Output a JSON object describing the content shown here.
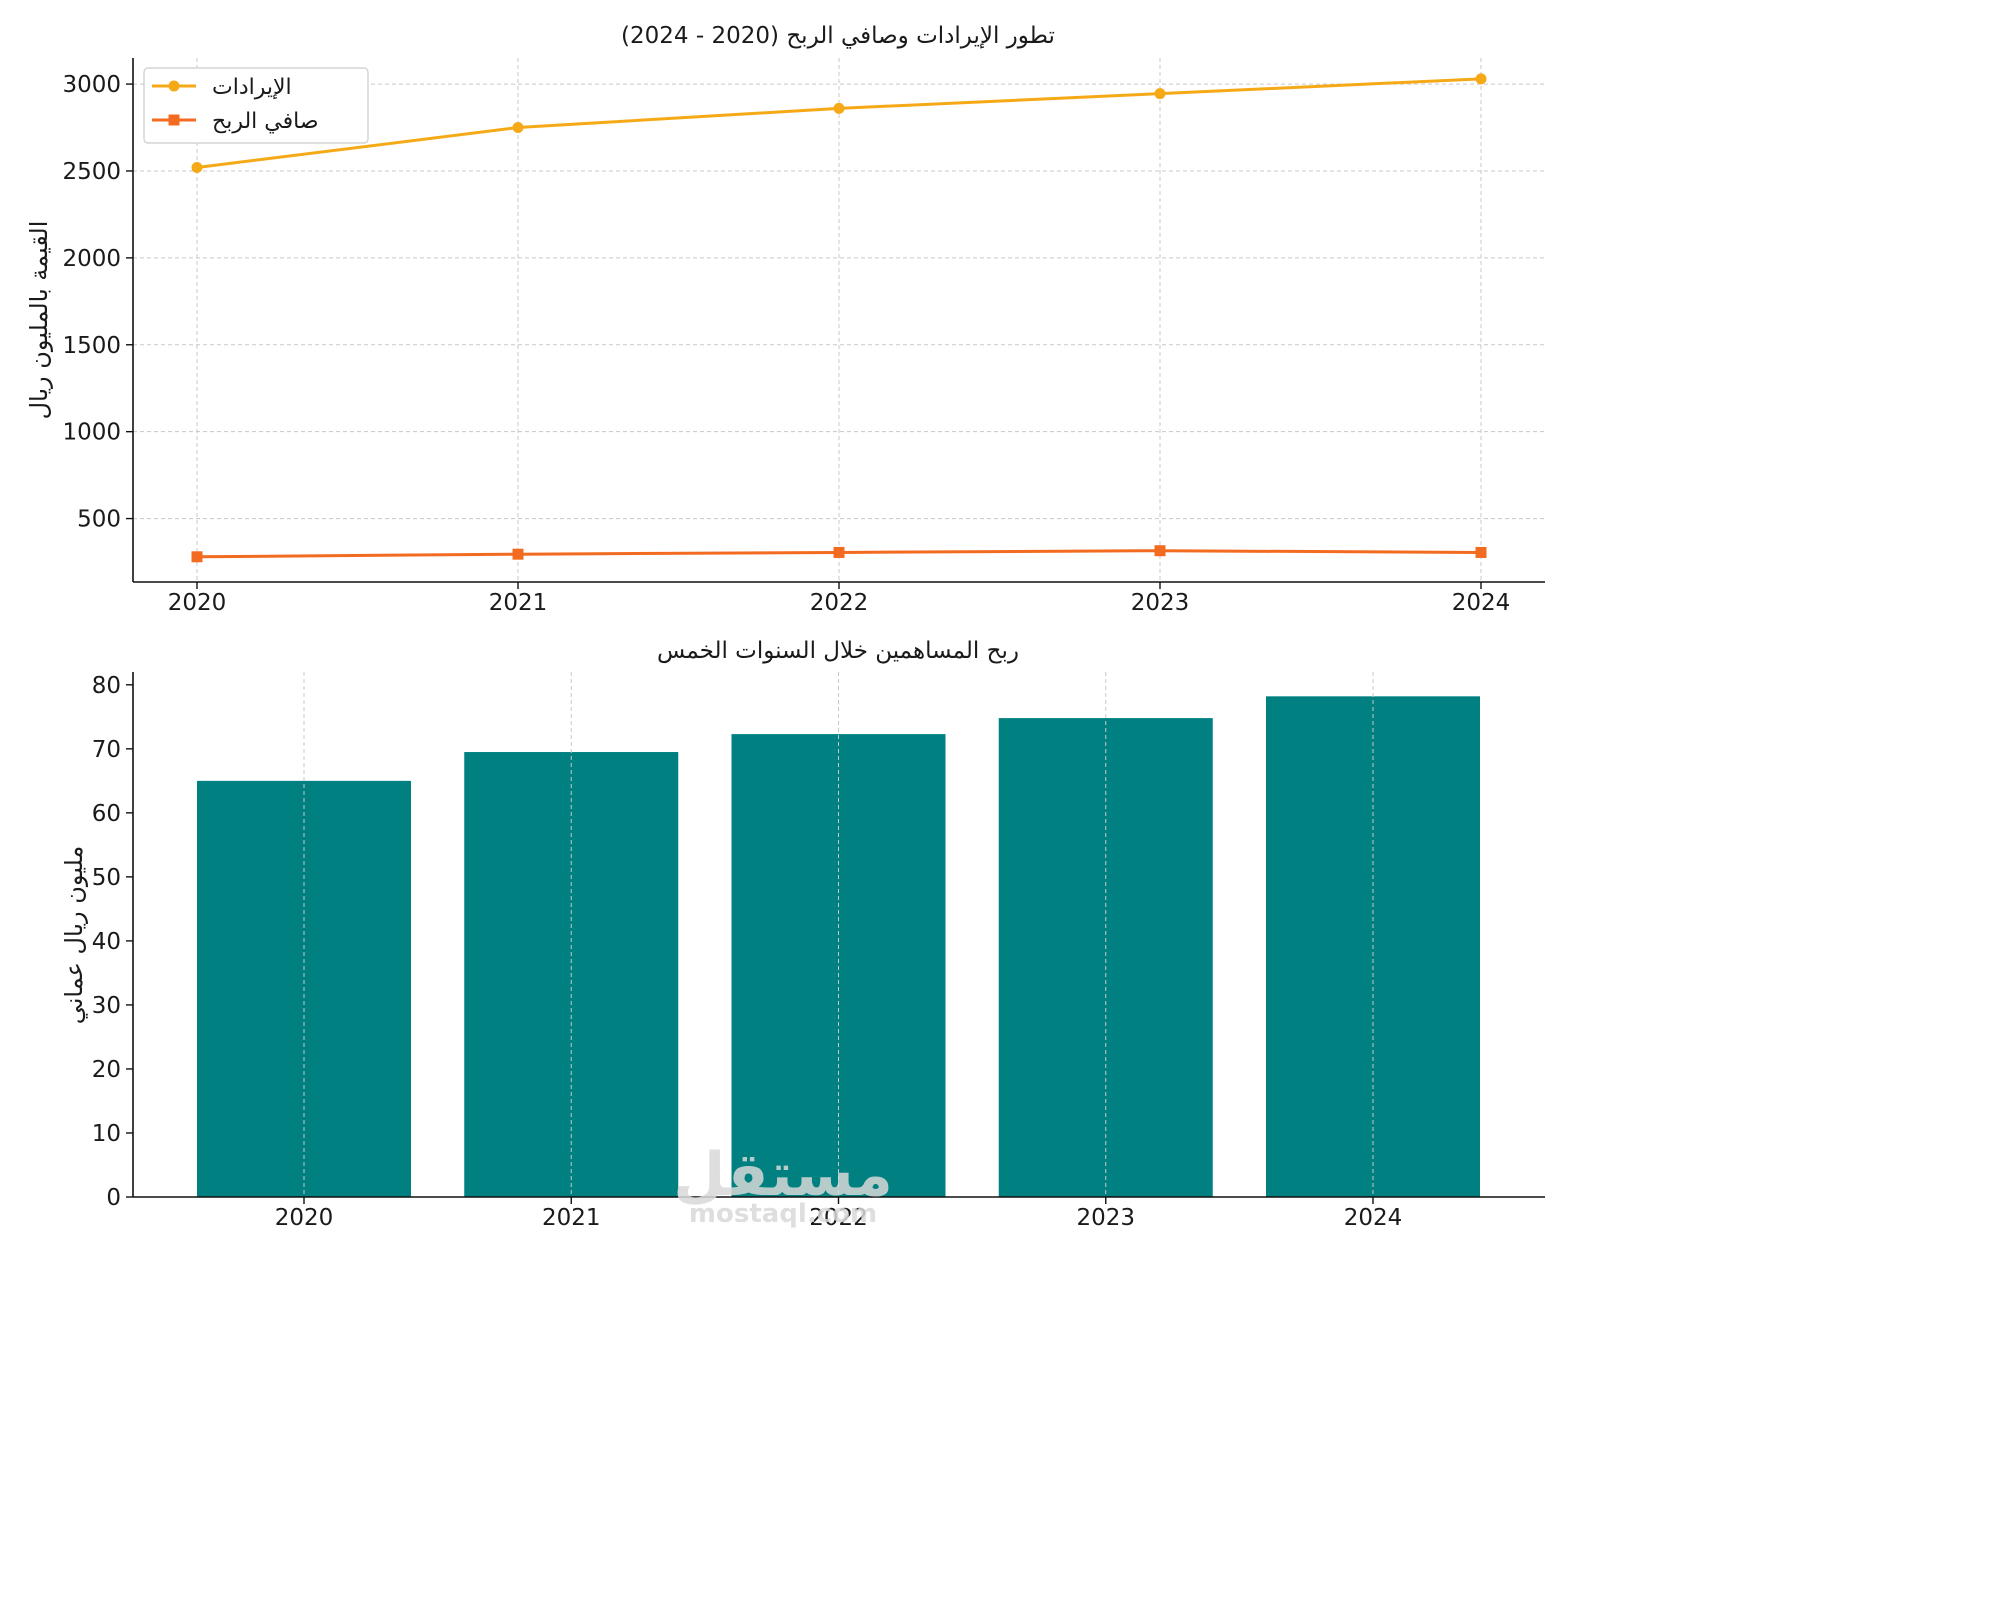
{
  "chart_data": [
    {
      "type": "line",
      "title": "تطور الإيرادات وصافي الربح (2020 - 2024)",
      "ylabel": "القيمة بالمليون ريال",
      "xlabel": "",
      "x": [
        "2020",
        "2021",
        "2022",
        "2023",
        "2024"
      ],
      "yticks": [
        500,
        1000,
        1500,
        2000,
        2500,
        3000
      ],
      "ylim": [
        135,
        3150
      ],
      "grid": true,
      "legend_position": "top-left",
      "series": [
        {
          "name": "الإيرادات",
          "values": [
            2520,
            2750,
            2860,
            2945,
            3030
          ],
          "color": "#f5a917",
          "marker": "circle"
        },
        {
          "name": "صافي الربح",
          "values": [
            280,
            295,
            305,
            315,
            305
          ],
          "color": "#f26b21",
          "marker": "square"
        }
      ]
    },
    {
      "type": "bar",
      "title": "ربح المساهمين خلال السنوات الخمس",
      "ylabel": "مليون ريال عماني",
      "xlabel": "",
      "categories": [
        "2020",
        "2021",
        "2022",
        "2023",
        "2024"
      ],
      "values": [
        65,
        69.5,
        72.3,
        74.8,
        78.2
      ],
      "yticks": [
        0,
        10,
        20,
        30,
        40,
        50,
        60,
        70,
        80
      ],
      "ylim": [
        0,
        82
      ],
      "grid": true,
      "color": "#008080"
    }
  ],
  "watermark": {
    "logo_text": "مستقل",
    "url_text": "mostaql.com"
  }
}
